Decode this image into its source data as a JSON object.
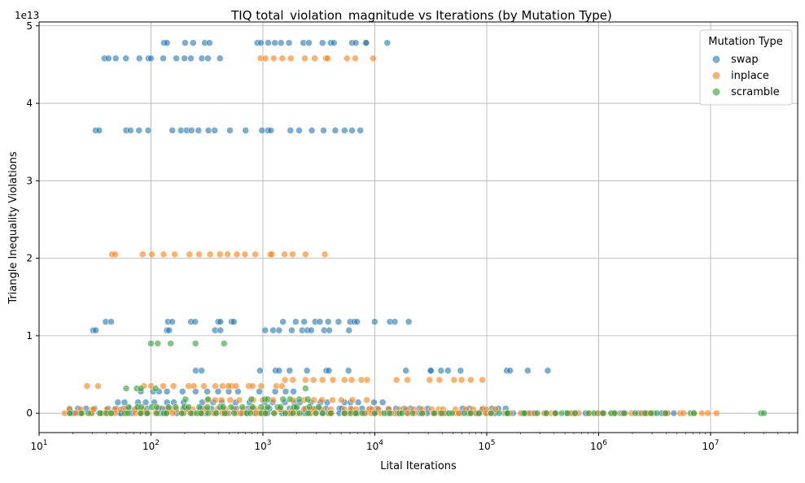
{
  "chart_data": {
    "type": "scatter",
    "title": "TIQ total_violation_magnitude vs Iterations (by Mutation Type)",
    "xlabel": "Lital Iterations",
    "ylabel": "Triangle Inequality Violations",
    "x_scale": "log",
    "xlim": [
      10,
      60000000
    ],
    "ylim": [
      -2500000000000.0,
      50500000000000.0
    ],
    "y_offset_label": "1e13",
    "x_ticks": [
      {
        "value": 10,
        "base": "10",
        "exp": "1"
      },
      {
        "value": 100,
        "base": "10",
        "exp": "2"
      },
      {
        "value": 1000,
        "base": "10",
        "exp": "3"
      },
      {
        "value": 10000,
        "base": "10",
        "exp": "4"
      },
      {
        "value": 100000,
        "base": "10",
        "exp": "5"
      },
      {
        "value": 1000000,
        "base": "10",
        "exp": "6"
      },
      {
        "value": 10000000,
        "base": "10",
        "exp": "7"
      }
    ],
    "y_ticks": [
      {
        "value": 0,
        "label": "0"
      },
      {
        "value": 10000000000000.0,
        "label": "1"
      },
      {
        "value": 20000000000000.0,
        "label": "2"
      },
      {
        "value": 30000000000000.0,
        "label": "3"
      },
      {
        "value": 40000000000000.0,
        "label": "4"
      },
      {
        "value": 50000000000000.0,
        "label": "5"
      }
    ],
    "grid": true,
    "legend": {
      "title": "Mutation Type",
      "position": "top-right"
    },
    "series": [
      {
        "name": "swap",
        "color": "#1f77b4",
        "clusters": [
          {
            "y": 47800000000000.0,
            "x_ranges": [
              [
                130,
                140
              ],
              [
                200,
                230
              ],
              [
                300,
                330
              ],
              [
                900,
                950
              ],
              [
                1100,
                1250
              ],
              [
                1400,
                2200
              ],
              [
                2700,
                4200
              ],
              [
                4500,
                6000
              ],
              [
                6500,
                8000
              ],
              [
                9000,
                13000
              ]
            ]
          },
          {
            "y": 45800000000000.0,
            "x_ranges": [
              [
                38,
                42
              ],
              [
                50,
                90
              ],
              [
                100,
                100
              ],
              [
                130,
                170
              ],
              [
                190,
                300
              ],
              [
                330,
                420
              ]
            ]
          },
          {
            "y": 36500000000000.0,
            "x_ranges": [
              [
                32,
                34
              ],
              [
                60,
                65
              ],
              [
                80,
                95
              ],
              [
                150,
                180
              ],
              [
                210,
                230
              ],
              [
                250,
                500
              ],
              [
                700,
                700
              ],
              [
                1000,
                1100
              ],
              [
                1200,
                1700
              ],
              [
                2200,
                4500
              ],
              [
                5000,
                8000
              ]
            ]
          },
          {
            "y": 11800000000000.0,
            "x_ranges": [
              [
                40,
                45
              ],
              [
                140,
                160
              ],
              [
                230,
                250
              ],
              [
                400,
                420
              ],
              [
                520,
                550
              ],
              [
                1500,
                3500
              ],
              [
                3800,
                6000
              ],
              [
                6500,
                7000
              ],
              [
                10000,
                20000
              ]
            ]
          },
          {
            "y": 10700000000000.0,
            "x_ranges": [
              [
                30,
                32
              ],
              [
                140,
                145
              ],
              [
                370,
                420
              ],
              [
                1000,
                2500
              ],
              [
                2800,
                3500
              ],
              [
                3800,
                5500
              ]
            ]
          },
          {
            "y": 5500000000000.0,
            "x_ranges": [
              [
                250,
                280
              ],
              [
                1000,
                1800
              ],
              [
                2500,
                3500
              ],
              [
                4000,
                5500
              ],
              [
                20000,
                30000
              ],
              [
                32000,
                60000
              ],
              [
                150000,
                160000
              ],
              [
                220000,
                320000
              ]
            ]
          },
          {
            "y": 2800000000000.0,
            "x_ranges": [
              [
                80,
                150
              ],
              [
                200,
                480
              ],
              [
                600,
                900
              ],
              [
                1200,
                2000
              ]
            ]
          },
          {
            "y": 1400000000000.0,
            "x_ranges": [
              [
                50,
                200
              ],
              [
                300,
                700
              ],
              [
                1000,
                4000
              ],
              [
                5000,
                12000
              ]
            ]
          },
          {
            "y": 600000000000.0,
            "x_ranges": [
              [
                20,
                30000
              ],
              [
                60000,
                150000
              ]
            ]
          },
          {
            "y": 0,
            "x_ranges": [
              [
                18,
                5000000
              ]
            ]
          }
        ]
      },
      {
        "name": "inplace",
        "color": "#ff7f0e",
        "clusters": [
          {
            "y": 45800000000000.0,
            "x_ranges": [
              [
                950,
                1050
              ],
              [
                1200,
                1900
              ],
              [
                2200,
                3500
              ],
              [
                4000,
                6000
              ],
              [
                6500,
                9000
              ]
            ]
          },
          {
            "y": 20500000000000.0,
            "x_ranges": [
              [
                45,
                48
              ],
              [
                80,
                100
              ],
              [
                130,
                160
              ],
              [
                220,
                400
              ],
              [
                500,
                1100
              ],
              [
                1200,
                1600
              ],
              [
                2000,
                3300
              ]
            ]
          },
          {
            "y": 4300000000000.0,
            "x_ranges": [
              [
                1500,
                4000
              ],
              [
                5000,
                9000
              ],
              [
                15000,
                20000
              ],
              [
                30000,
                60000
              ],
              [
                75000,
                90000
              ]
            ]
          },
          {
            "y": 3500000000000.0,
            "x_ranges": [
              [
                28,
                35
              ],
              [
                80,
                130
              ],
              [
                170,
                500
              ],
              [
                500,
                1500
              ]
            ]
          },
          {
            "y": 1700000000000.0,
            "x_ranges": [
              [
                300,
                1200
              ],
              [
                2000,
                8000
              ]
            ]
          },
          {
            "y": 500000000000.0,
            "x_ranges": [
              [
                20,
                120000
              ]
            ]
          },
          {
            "y": 0,
            "x_ranges": [
              [
                18,
                12000000
              ]
            ]
          }
        ]
      },
      {
        "name": "scramble",
        "color": "#2ca02c",
        "clusters": [
          {
            "y": 9000000000000.0,
            "x_ranges": [
              [
                100,
                100
              ],
              [
                115,
                115
              ],
              [
                150,
                150
              ],
              [
                250,
                250
              ],
              [
                450,
                450
              ]
            ]
          },
          {
            "y": 3200000000000.0,
            "x_ranges": [
              [
                60,
                60
              ],
              [
                75,
                80
              ],
              [
                110,
                110
              ],
              [
                2400,
                2400
              ]
            ]
          },
          {
            "y": 1800000000000.0,
            "x_ranges": [
              [
                200,
                300
              ],
              [
                800,
                2600
              ]
            ]
          },
          {
            "y": 800000000000.0,
            "x_ranges": [
              [
                60,
                3000
              ]
            ]
          },
          {
            "y": 0,
            "x_ranges": [
              [
                20,
                4000000
              ],
              [
                6500000,
                7000000
              ],
              [
                28000000,
                30000000
              ]
            ]
          }
        ]
      }
    ]
  }
}
